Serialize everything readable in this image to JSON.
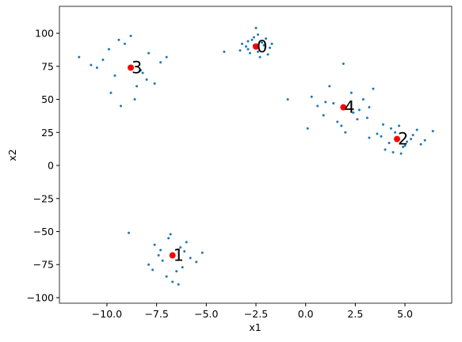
{
  "chart_data": {
    "type": "scatter",
    "x_label": "x1",
    "y_label": "x2",
    "xlim": [
      -12.39,
      7.35
    ],
    "ylim": [
      -104.2,
      120.4
    ],
    "xticks": [
      {
        "value": -10,
        "label": "−10.0"
      },
      {
        "value": -7.5,
        "label": "−7.5"
      },
      {
        "value": -5,
        "label": "−5.0"
      },
      {
        "value": -2.5,
        "label": "−2.5"
      },
      {
        "value": 0,
        "label": "0.0"
      },
      {
        "value": 2.5,
        "label": "2.5"
      },
      {
        "value": 5,
        "label": "5.0"
      }
    ],
    "yticks": [
      {
        "value": -100,
        "label": "−100"
      },
      {
        "value": -75,
        "label": "−75"
      },
      {
        "value": -50,
        "label": "−50"
      },
      {
        "value": -25,
        "label": "−25"
      },
      0,
      25,
      50,
      75,
      100
    ],
    "series": [
      {
        "color": "#1f77b4",
        "x": [
          -3.2,
          -2.9,
          -2.7,
          -2.4,
          -2.1,
          -1.9,
          -2.6,
          -3.0,
          -2.2,
          -1.8,
          -2.5,
          -2.8,
          -2.3,
          -4.1,
          -2.0,
          -2.6,
          -3.3,
          -1.7,
          -2.4,
          -2.9,
          -7.6,
          -7.2,
          -6.9,
          -6.5,
          -6.1,
          -5.8,
          -7.9,
          -6.3,
          -6.7,
          -7.4,
          -5.5,
          -8.9,
          -6.0,
          -7.0,
          -6.4,
          -5.2,
          -7.7,
          -6.8,
          -6.2,
          -7.3,
          3.8,
          4.2,
          4.5,
          4.9,
          5.3,
          5.6,
          4.0,
          4.7,
          5.1,
          3.6,
          6.0,
          4.4,
          5.8,
          3.2,
          4.8,
          5.4,
          6.4,
          4.3,
          5.0,
          3.9,
          -10.2,
          -9.6,
          -9.1,
          -8.5,
          -7.9,
          -7.3,
          -9.8,
          -8.2,
          -8.8,
          -10.5,
          -7.0,
          -11.4,
          -9.3,
          -8.0,
          -9.9,
          -7.6,
          -8.6,
          -10.8,
          -9.4,
          -8.3,
          0.3,
          0.9,
          1.4,
          1.8,
          2.3,
          2.7,
          3.1,
          1.2,
          2.0,
          0.6,
          2.9,
          1.6,
          2.4,
          3.4,
          0.1,
          1.0,
          2.6,
          1.9,
          -0.9,
          3.2
        ],
        "values": [
          92,
          88,
          95,
          86,
          91,
          84,
          97,
          90,
          93,
          89,
          104,
          85,
          82,
          86,
          96,
          91,
          87,
          92,
          99,
          94,
          -60,
          -72,
          -55,
          -80,
          -65,
          -70,
          -75,
          -62,
          -88,
          -68,
          -73,
          -51,
          -58,
          -84,
          -90,
          -66,
          -79,
          -52,
          -77,
          -64,
          22,
          17,
          25,
          14,
          20,
          27,
          12,
          30,
          18,
          24,
          19,
          10,
          16,
          21,
          9,
          23,
          26,
          28,
          15,
          31,
          80,
          68,
          92,
          60,
          85,
          78,
          55,
          70,
          98,
          74,
          82,
          82,
          45,
          65,
          88,
          62,
          50,
          76,
          95,
          72,
          52,
          38,
          47,
          30,
          55,
          42,
          36,
          60,
          25,
          45,
          50,
          33,
          40,
          58,
          28,
          48,
          35,
          77,
          50,
          44
        ]
      },
      {
        "color": "red",
        "x": [
          -2.5,
          -6.7,
          4.6,
          -8.8,
          1.9
        ],
        "values": [
          90,
          -68,
          20,
          74,
          44
        ],
        "labels": [
          "0",
          "1",
          "2",
          "3",
          "4"
        ]
      }
    ]
  }
}
